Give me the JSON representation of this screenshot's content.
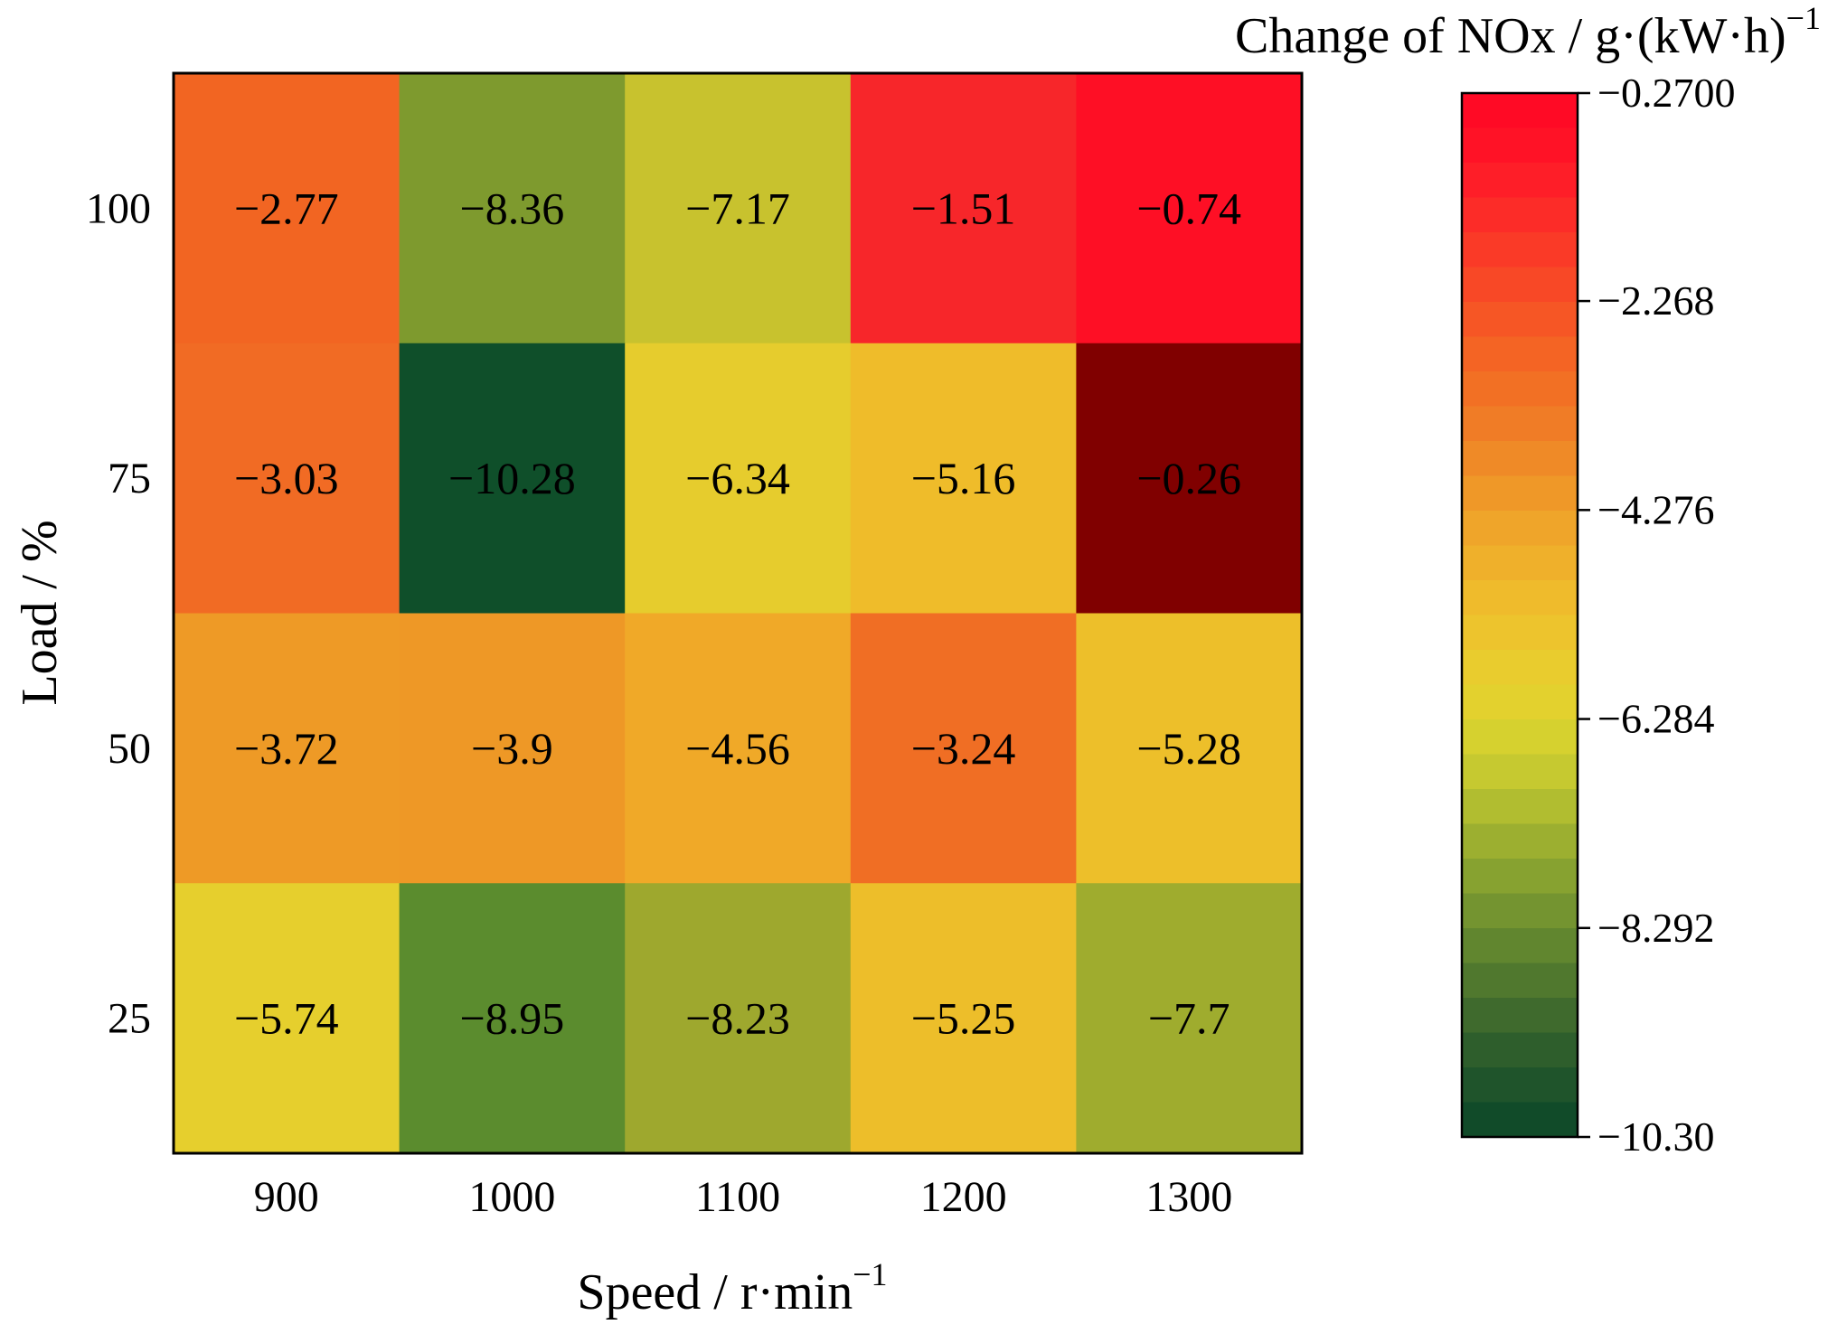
{
  "chart_data": {
    "type": "heatmap",
    "title": "",
    "xlabel": "Speed / r·min",
    "xlabel_sup": "−1",
    "ylabel": "Load / %",
    "x_categories": [
      "900",
      "1000",
      "1100",
      "1200",
      "1300"
    ],
    "y_categories": [
      "100",
      "75",
      "50",
      "25"
    ],
    "values": [
      [
        -2.77,
        -8.36,
        -7.17,
        -1.51,
        -0.74
      ],
      [
        -3.03,
        -10.28,
        -6.34,
        -5.16,
        -0.26
      ],
      [
        -3.72,
        -3.9,
        -4.56,
        -3.24,
        -5.28
      ],
      [
        -5.74,
        -8.95,
        -8.23,
        -5.25,
        -7.7
      ]
    ],
    "cell_labels": [
      [
        "−2.77",
        "−8.36",
        "−7.17",
        "−1.51",
        "−0.74"
      ],
      [
        "−3.03",
        "−10.28",
        "−6.34",
        "−5.16",
        "−0.26"
      ],
      [
        "−3.72",
        "−3.9",
        "−4.56",
        "−3.24",
        "−5.28"
      ],
      [
        "−5.74",
        "−8.95",
        "−8.23",
        "−5.25",
        "−7.7"
      ]
    ],
    "cell_colors": [
      [
        "#f26522",
        "#7e9a2e",
        "#c8c22e",
        "#f7262a",
        "#fe0f25"
      ],
      [
        "#f16b24",
        "#0f4f2a",
        "#e6cc2d",
        "#efbc2a",
        "#800000"
      ],
      [
        "#ee9a26",
        "#ee9826",
        "#f0a928",
        "#f06e24",
        "#edbf2a"
      ],
      [
        "#e6cf2d",
        "#5b8c2e",
        "#9ea82e",
        "#edbe2a",
        "#9fac2e"
      ]
    ],
    "colorbar": {
      "title": "Change of NOx / g·(kW·h)",
      "title_sup": "−1",
      "range": [
        -10.3,
        -0.27
      ],
      "tick_values": [
        -0.27,
        -2.268,
        -4.276,
        -6.284,
        -8.292,
        -10.3
      ],
      "tick_labels": [
        "−0.2700",
        "−2.268",
        "−4.276",
        "−6.284",
        "−8.292",
        "−10.30"
      ],
      "band_colors_top_to_bottom": [
        "#ff0a25",
        "#ff1226",
        "#fe1e28",
        "#fc2c28",
        "#fa3a27",
        "#f84826",
        "#f65625",
        "#f46424",
        "#f27024",
        "#f07c26",
        "#ef8a27",
        "#ef9828",
        "#efa52a",
        "#efb02b",
        "#efbb2c",
        "#edc42d",
        "#e9cc2e",
        "#e3d12e",
        "#d6d12f",
        "#c6c930",
        "#b1bd30",
        "#9caf30",
        "#87a230",
        "#749430",
        "#61862f",
        "#50782e",
        "#3f6a2d",
        "#2e5e2c",
        "#1f542b",
        "#114b29"
      ]
    }
  }
}
